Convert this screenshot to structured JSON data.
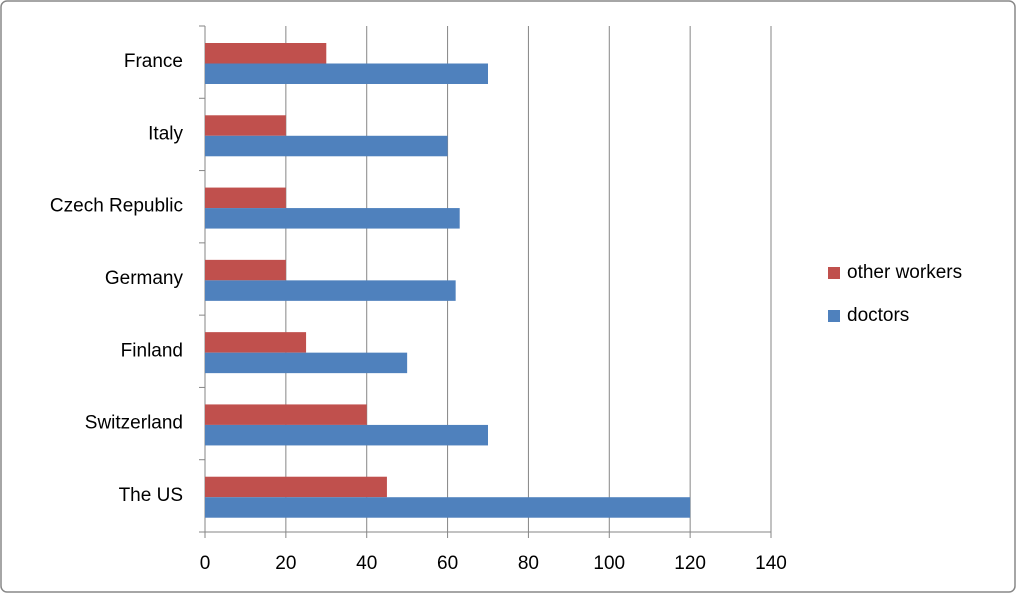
{
  "chart_data": {
    "type": "hbar",
    "categories": [
      "France",
      "Italy",
      "Czech Republic",
      "Germany",
      "Finland",
      "Switzerland",
      "The US"
    ],
    "series": [
      {
        "name": "other workers",
        "color": "#c0504d",
        "values": [
          30,
          20,
          20,
          20,
          25,
          40,
          45
        ]
      },
      {
        "name": "doctors",
        "color": "#4f81bd",
        "values": [
          70,
          60,
          63,
          62,
          50,
          70,
          120
        ]
      }
    ],
    "xlim": [
      0,
      140
    ],
    "xticks": [
      0,
      20,
      40,
      60,
      80,
      100,
      120,
      140
    ],
    "grid": true,
    "legend": "right"
  }
}
